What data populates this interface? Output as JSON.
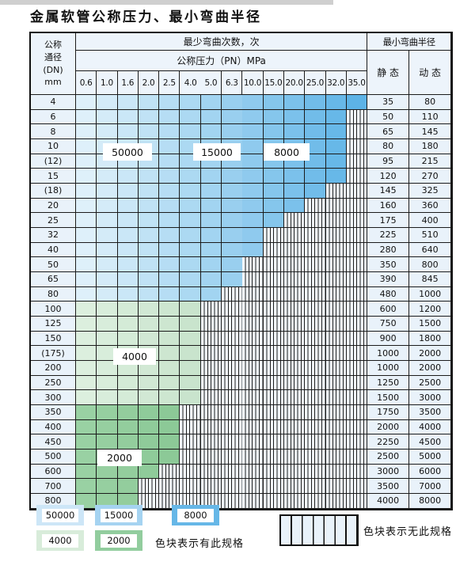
{
  "title": "金属软管公称压力、最小弯曲半径",
  "table": {
    "dn_header_lines": [
      "公称",
      "通径",
      "(DN)",
      "mm"
    ],
    "cycles_header": "最少弯曲次数，次",
    "pressure_header": "公称压力（PN）MPa",
    "radius_header": "最小弯曲半径",
    "static_label": "静 态",
    "dynamic_label": "动 态",
    "pressures": [
      "0.6",
      "1.0",
      "1.6",
      "2.0",
      "2.5",
      "4.0",
      "5.0",
      "6.3",
      "10.0",
      "15.0",
      "20.0",
      "25.0",
      "32.0",
      "35.0"
    ],
    "rows": [
      {
        "dn": "4",
        "last": 14,
        "band": "blue",
        "static": "35",
        "dynamic": "80"
      },
      {
        "dn": "6",
        "last": 13,
        "band": "blue",
        "static": "50",
        "dynamic": "110"
      },
      {
        "dn": "8",
        "last": 13,
        "band": "blue",
        "static": "65",
        "dynamic": "145"
      },
      {
        "dn": "10",
        "last": 13,
        "band": "blue",
        "static": "80",
        "dynamic": "180"
      },
      {
        "dn": "(12)",
        "last": 13,
        "band": "blue",
        "static": "95",
        "dynamic": "215"
      },
      {
        "dn": "15",
        "last": 13,
        "band": "blue",
        "static": "120",
        "dynamic": "270"
      },
      {
        "dn": "(18)",
        "last": 12,
        "band": "blue",
        "static": "145",
        "dynamic": "325"
      },
      {
        "dn": "20",
        "last": 11,
        "band": "blue",
        "static": "160",
        "dynamic": "360"
      },
      {
        "dn": "25",
        "last": 10,
        "band": "blue",
        "static": "175",
        "dynamic": "400"
      },
      {
        "dn": "32",
        "last": 9,
        "band": "blue",
        "static": "225",
        "dynamic": "510"
      },
      {
        "dn": "40",
        "last": 9,
        "band": "blue",
        "static": "280",
        "dynamic": "640"
      },
      {
        "dn": "50",
        "last": 8,
        "band": "blue",
        "static": "350",
        "dynamic": "800"
      },
      {
        "dn": "65",
        "last": 8,
        "band": "blue",
        "static": "390",
        "dynamic": "845"
      },
      {
        "dn": "80",
        "last": 7,
        "band": "blue",
        "static": "480",
        "dynamic": "1000"
      },
      {
        "dn": "100",
        "last": 6,
        "band": "green_light",
        "static": "600",
        "dynamic": "1200"
      },
      {
        "dn": "125",
        "last": 6,
        "band": "green_light",
        "static": "750",
        "dynamic": "1500"
      },
      {
        "dn": "150",
        "last": 6,
        "band": "green_light",
        "static": "900",
        "dynamic": "1800"
      },
      {
        "dn": "(175)",
        "last": 6,
        "band": "green_light",
        "static": "1000",
        "dynamic": "2000"
      },
      {
        "dn": "200",
        "last": 6,
        "band": "green_light",
        "static": "1000",
        "dynamic": "2000"
      },
      {
        "dn": "250",
        "last": 6,
        "band": "green_light",
        "static": "1250",
        "dynamic": "2500"
      },
      {
        "dn": "300",
        "last": 6,
        "band": "green_light",
        "static": "1500",
        "dynamic": "3000"
      },
      {
        "dn": "350",
        "last": 5,
        "band": "green_dark",
        "static": "1750",
        "dynamic": "3500"
      },
      {
        "dn": "400",
        "last": 5,
        "band": "green_dark",
        "static": "2000",
        "dynamic": "4000"
      },
      {
        "dn": "450",
        "last": 5,
        "band": "green_dark",
        "static": "2250",
        "dynamic": "4500"
      },
      {
        "dn": "500",
        "last": 5,
        "band": "green_dark",
        "static": "2500",
        "dynamic": "5000"
      },
      {
        "dn": "600",
        "last": 4,
        "band": "green_dark",
        "static": "3000",
        "dynamic": "6000"
      },
      {
        "dn": "700",
        "last": 3,
        "band": "green_dark",
        "static": "3500",
        "dynamic": "7000"
      },
      {
        "dn": "800",
        "last": 3,
        "band": "green_dark",
        "static": "4000",
        "dynamic": "8000"
      }
    ]
  },
  "overlay": {
    "l50000": "50000",
    "l15000": "15000",
    "l8000": "8000",
    "l4000": "4000",
    "l2000": "2000"
  },
  "legend": {
    "items": [
      {
        "value": "50000",
        "key": "blue_light"
      },
      {
        "value": "15000",
        "key": "blue_mid"
      },
      {
        "value": "8000",
        "key": "blue_dark"
      },
      {
        "value": "4000",
        "key": "green_light"
      },
      {
        "value": "2000",
        "key": "green_dark"
      }
    ],
    "caption_available": "色块表示有此规格",
    "caption_unavailable": "色块表示无此规格"
  },
  "colors": {
    "blue_light": "#cde6f7",
    "blue_mid": "#a5d3f1",
    "blue_dark": "#66b7e7",
    "green_light": "#d8ecda",
    "green_dark": "#92cd9e",
    "hatch_fill": "#f3f9fe",
    "panel_blue": "#e9f2fa",
    "grid_line": "#1b1b1b"
  }
}
